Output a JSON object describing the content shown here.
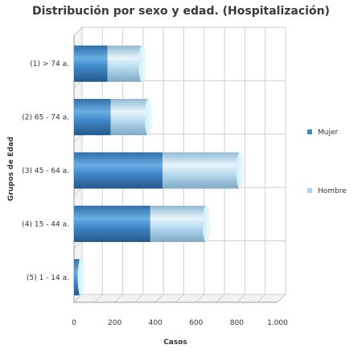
{
  "chart_data": {
    "type": "bar",
    "orientation": "horizontal",
    "stacked": true,
    "title": "Distribución por sexo y edad. (Hospitalización)",
    "xlabel": "Casos",
    "ylabel": "Grupos de Edad",
    "xlim": [
      0,
      1000
    ],
    "xticks": [
      "0",
      "200",
      "400",
      "600",
      "800",
      "1.000"
    ],
    "categories": [
      "(1) > 74 a.",
      "(2) 65 - 74 a.",
      "(3) 45 - 64 a.",
      "(4) 15 - 44 a.",
      "(5) 1 - 14 a."
    ],
    "series": [
      {
        "name": "Mujer",
        "values": [
          165,
          180,
          435,
          375,
          25
        ],
        "color": "#3f86c6"
      },
      {
        "name": "Hombre",
        "values": [
          170,
          185,
          380,
          275,
          10
        ],
        "color": "#a9d4ee"
      }
    ],
    "grid": true,
    "legend": "right"
  }
}
